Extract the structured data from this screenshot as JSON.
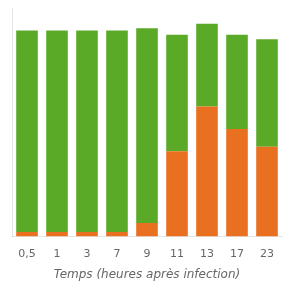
{
  "chart_data": {
    "type": "bar",
    "stacked": true,
    "categories": [
      "0,5",
      "1",
      "3",
      "7",
      "9",
      "11",
      "13",
      "17",
      "23"
    ],
    "series": [
      {
        "color": "#e87020",
        "values": [
          2,
          2,
          2,
          2,
          6,
          38,
          58,
          48,
          40
        ]
      },
      {
        "color": "#5aaa28",
        "values": [
          90,
          90,
          90,
          90,
          87,
          52,
          37,
          42,
          48
        ]
      }
    ],
    "xlabel": "Temps (heures après infection)",
    "ylim": [
      0,
      102
    ],
    "grid": false,
    "tick_labels": "x"
  }
}
